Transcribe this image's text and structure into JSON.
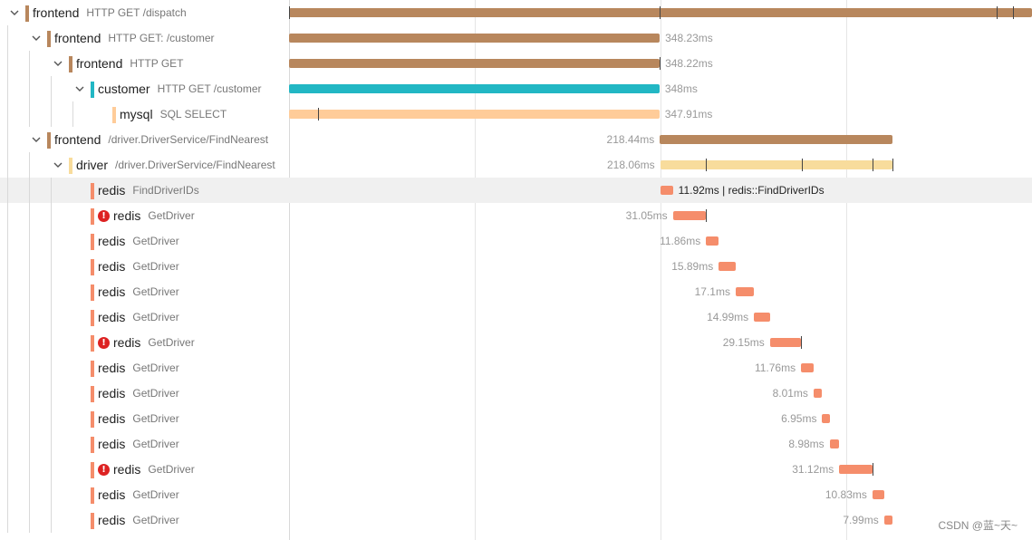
{
  "rows": [
    {
      "depth": 0,
      "service": "frontend",
      "op": "HTTP GET /dispatch",
      "color": "#b8875d",
      "expanded": true,
      "error": false,
      "duration": "",
      "start_ms": 0,
      "dur_ms": 698.0,
      "ticks_ms": [
        0,
        348.26,
        664.66,
        679.71
      ]
    },
    {
      "depth": 1,
      "service": "frontend",
      "op": "HTTP GET: /customer",
      "color": "#b8875d",
      "expanded": true,
      "error": false,
      "duration": "348.23ms",
      "start_ms": 0,
      "dur_ms": 348.23,
      "ticks_ms": []
    },
    {
      "depth": 2,
      "service": "frontend",
      "op": "HTTP GET",
      "color": "#b8875d",
      "expanded": true,
      "error": false,
      "duration": "348.22ms",
      "start_ms": 0,
      "dur_ms": 348.22,
      "ticks_ms": [
        348.22
      ]
    },
    {
      "depth": 3,
      "service": "customer",
      "op": "HTTP GET /customer",
      "color": "#22b7c4",
      "expanded": true,
      "error": false,
      "duration": "348ms",
      "start_ms": 0,
      "dur_ms": 348,
      "ticks_ms": []
    },
    {
      "depth": 4,
      "service": "mysql",
      "op": "SQL SELECT",
      "color": "#ffcc99",
      "expanded": null,
      "error": false,
      "duration": "347.91ms",
      "start_ms": 0,
      "dur_ms": 347.91,
      "ticks_ms": [
        27.4
      ]
    },
    {
      "depth": 1,
      "service": "frontend",
      "op": "/driver.DriverService/FindNearest",
      "color": "#b8875d",
      "expanded": true,
      "error": false,
      "duration": "218.44ms",
      "start_ms": 348.33,
      "dur_ms": 218.44,
      "ticks_ms": []
    },
    {
      "depth": 2,
      "service": "driver",
      "op": "/driver.DriverService/FindNearest",
      "color": "#f8dc9c",
      "expanded": true,
      "error": false,
      "duration": "218.06ms",
      "start_ms": 348.71,
      "dur_ms": 218.06,
      "ticks_ms": [
        391.6,
        481.4,
        548.3,
        566.77
      ]
    },
    {
      "depth": 3,
      "service": "redis",
      "op": "FindDriverIDs",
      "color": "#f58d6b",
      "expanded": null,
      "error": false,
      "duration": "11.92ms | redis::FindDriverIDs",
      "start_ms": 348.71,
      "dur_ms": 11.92,
      "ticks_ms": [],
      "hl": true
    },
    {
      "depth": 3,
      "service": "redis",
      "op": "GetDriver",
      "color": "#f58d6b",
      "expanded": null,
      "error": true,
      "duration": "31.05ms",
      "start_ms": 360.65,
      "dur_ms": 31.05,
      "ticks_ms": [
        391.7
      ]
    },
    {
      "depth": 3,
      "service": "redis",
      "op": "GetDriver",
      "color": "#f58d6b",
      "expanded": null,
      "error": false,
      "duration": "11.86ms",
      "start_ms": 391.75,
      "dur_ms": 11.86,
      "ticks_ms": []
    },
    {
      "depth": 3,
      "service": "redis",
      "op": "GetDriver",
      "color": "#f58d6b",
      "expanded": null,
      "error": false,
      "duration": "15.89ms",
      "start_ms": 403.66,
      "dur_ms": 15.89,
      "ticks_ms": []
    },
    {
      "depth": 3,
      "service": "redis",
      "op": "GetDriver",
      "color": "#f58d6b",
      "expanded": null,
      "error": false,
      "duration": "17.1ms",
      "start_ms": 419.6,
      "dur_ms": 17.1,
      "ticks_ms": []
    },
    {
      "depth": 3,
      "service": "redis",
      "op": "GetDriver",
      "color": "#f58d6b",
      "expanded": null,
      "error": false,
      "duration": "14.99ms",
      "start_ms": 436.8,
      "dur_ms": 14.99,
      "ticks_ms": []
    },
    {
      "depth": 3,
      "service": "redis",
      "op": "GetDriver",
      "color": "#f58d6b",
      "expanded": null,
      "error": true,
      "duration": "29.15ms",
      "start_ms": 451.8,
      "dur_ms": 29.15,
      "ticks_ms": [
        480.9
      ]
    },
    {
      "depth": 3,
      "service": "redis",
      "op": "GetDriver",
      "color": "#f58d6b",
      "expanded": null,
      "error": false,
      "duration": "11.76ms",
      "start_ms": 481.0,
      "dur_ms": 11.76,
      "ticks_ms": []
    },
    {
      "depth": 3,
      "service": "redis",
      "op": "GetDriver",
      "color": "#f58d6b",
      "expanded": null,
      "error": false,
      "duration": "8.01ms",
      "start_ms": 492.8,
      "dur_ms": 8.01,
      "ticks_ms": []
    },
    {
      "depth": 3,
      "service": "redis",
      "op": "GetDriver",
      "color": "#f58d6b",
      "expanded": null,
      "error": false,
      "duration": "6.95ms",
      "start_ms": 500.9,
      "dur_ms": 6.95,
      "ticks_ms": []
    },
    {
      "depth": 3,
      "service": "redis",
      "op": "GetDriver",
      "color": "#f58d6b",
      "expanded": null,
      "error": false,
      "duration": "8.98ms",
      "start_ms": 507.9,
      "dur_ms": 8.98,
      "ticks_ms": []
    },
    {
      "depth": 3,
      "service": "redis",
      "op": "GetDriver",
      "color": "#f58d6b",
      "expanded": null,
      "error": true,
      "duration": "31.12ms",
      "start_ms": 516.9,
      "dur_ms": 31.12,
      "ticks_ms": [
        548.0
      ]
    },
    {
      "depth": 3,
      "service": "redis",
      "op": "GetDriver",
      "color": "#f58d6b",
      "expanded": null,
      "error": false,
      "duration": "10.83ms",
      "start_ms": 548.1,
      "dur_ms": 10.83,
      "ticks_ms": []
    },
    {
      "depth": 3,
      "service": "redis",
      "op": "GetDriver",
      "color": "#f58d6b",
      "expanded": null,
      "error": false,
      "duration": "7.99ms",
      "start_ms": 559.0,
      "dur_ms": 7.99,
      "ticks_ms": []
    }
  ],
  "watermark": "CSDN @蓝~天~"
}
